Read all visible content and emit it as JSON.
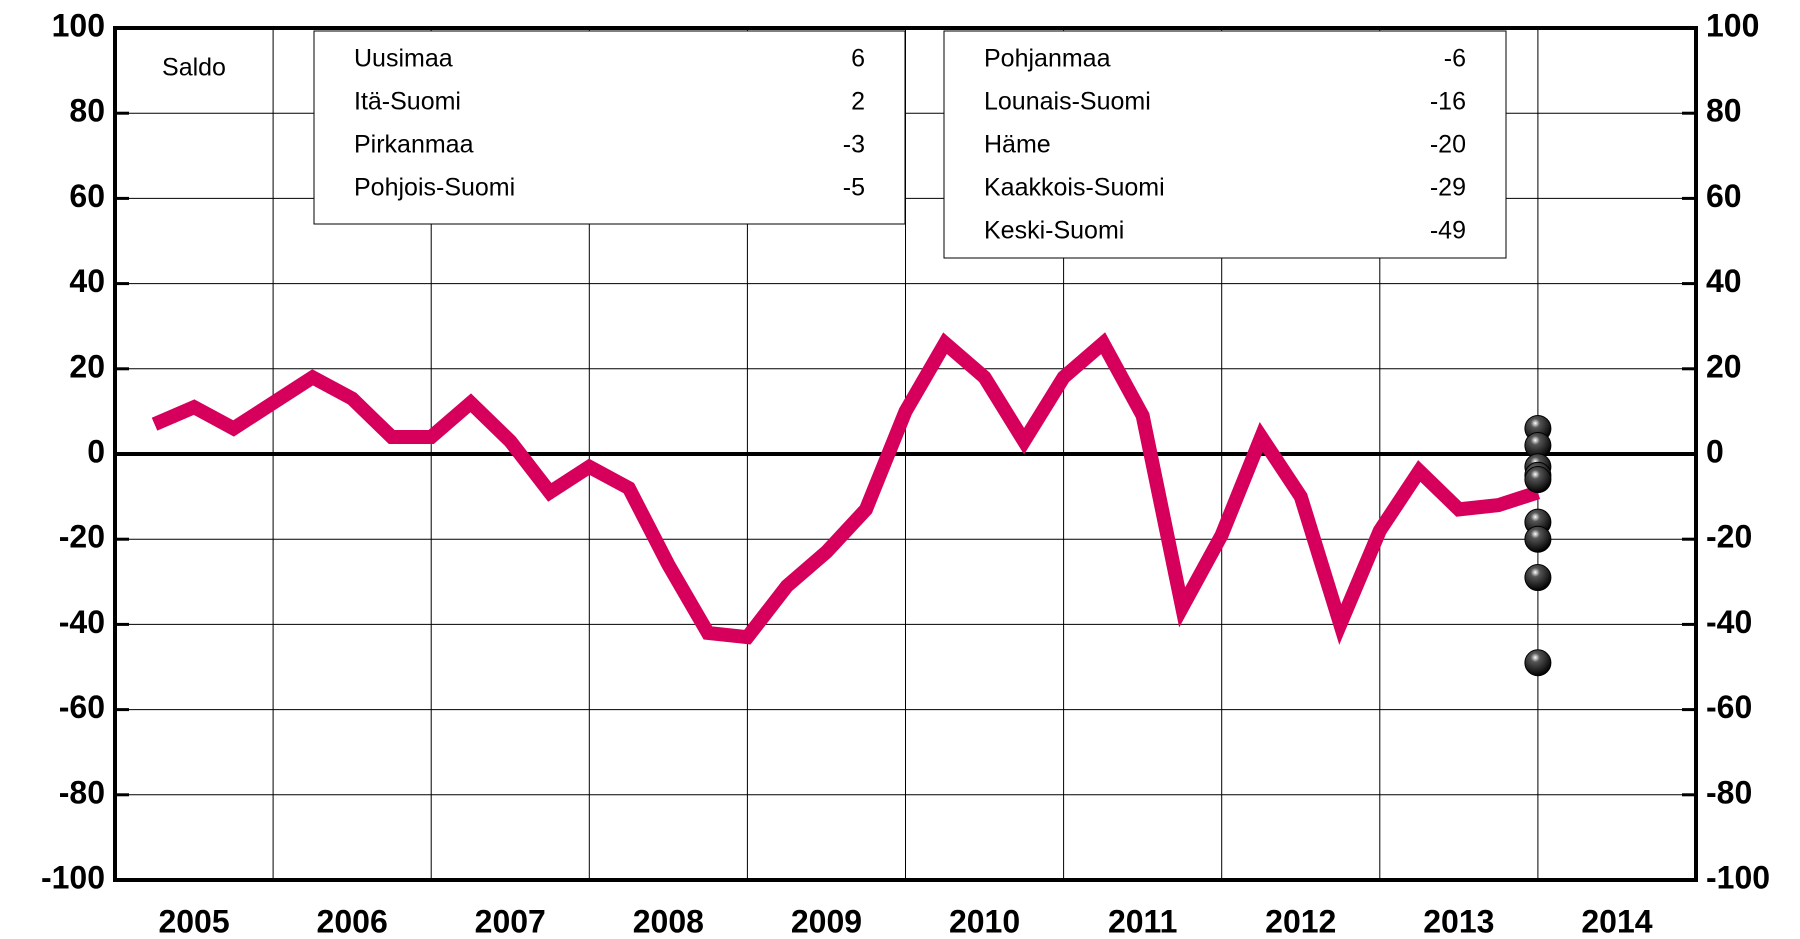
{
  "chart_data": {
    "type": "line",
    "label": "Saldo",
    "xlim": [
      2005,
      2015
    ],
    "xgrid": [
      2006,
      2007,
      2008,
      2009,
      2010,
      2011,
      2012,
      2013,
      2014
    ],
    "xticks": [
      {
        "value": 2005.5,
        "label": "2005"
      },
      {
        "value": 2006.5,
        "label": "2006"
      },
      {
        "value": 2007.5,
        "label": "2007"
      },
      {
        "value": 2008.5,
        "label": "2008"
      },
      {
        "value": 2009.5,
        "label": "2009"
      },
      {
        "value": 2010.5,
        "label": "2010"
      },
      {
        "value": 2011.5,
        "label": "2011"
      },
      {
        "value": 2012.5,
        "label": "2012"
      },
      {
        "value": 2013.5,
        "label": "2013"
      },
      {
        "value": 2014.5,
        "label": "2014"
      }
    ],
    "ylim": [
      -100,
      100
    ],
    "yticks": [
      -100,
      -80,
      -60,
      -40,
      -20,
      0,
      20,
      40,
      60,
      80,
      100
    ],
    "y2lim": [
      -100,
      100
    ],
    "y2ticks": [
      -100,
      -80,
      -60,
      -40,
      -20,
      0,
      20,
      40,
      60,
      80,
      100
    ],
    "grid": true,
    "x": [
      2005.25,
      2005.5,
      2005.75,
      2006,
      2006.25,
      2006.5,
      2006.75,
      2007,
      2007.25,
      2007.5,
      2007.75,
      2008,
      2008.25,
      2008.5,
      2008.75,
      2009,
      2009.25,
      2009.5,
      2009.75,
      2010,
      2010.25,
      2010.5,
      2010.75,
      2011,
      2011.25,
      2011.5,
      2011.75,
      2012,
      2012.25,
      2012.5,
      2012.75,
      2013,
      2013.25,
      2013.5,
      2013.75,
      2014
    ],
    "series": [
      {
        "color": "#d6005c",
        "values": [
          7,
          11,
          6,
          12,
          18,
          13,
          4,
          4,
          12,
          3,
          -9,
          -3,
          -8,
          -26,
          -42,
          -43,
          -31,
          -23,
          -13,
          10,
          26,
          18,
          3,
          18,
          26,
          9,
          -36,
          -19,
          4,
          -10,
          -40,
          -18,
          -4,
          -13,
          -12,
          -9
        ]
      }
    ],
    "regions_x": 2014,
    "regions": [
      {
        "name": "Uusimaa",
        "value": 6
      },
      {
        "name": "Itä-Suomi",
        "value": 2
      },
      {
        "name": "Pirkanmaa",
        "value": -3
      },
      {
        "name": "Pohjois-Suomi",
        "value": -5
      },
      {
        "name": "Pohjanmaa",
        "value": -6
      },
      {
        "name": "Lounais-Suomi",
        "value": -16
      },
      {
        "name": "Häme",
        "value": -20
      },
      {
        "name": "Kaakkois-Suomi",
        "value": -29
      },
      {
        "name": "Keski-Suomi",
        "value": -49
      }
    ]
  }
}
